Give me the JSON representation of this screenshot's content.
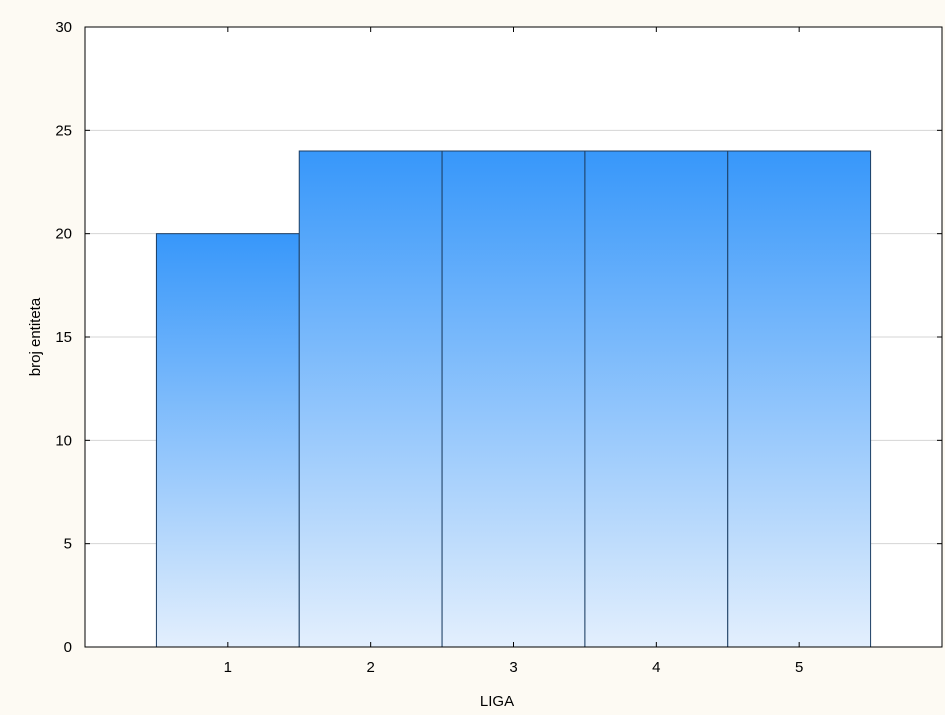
{
  "chart_data": {
    "type": "bar",
    "categories": [
      "1",
      "2",
      "3",
      "4",
      "5"
    ],
    "values": [
      20,
      24,
      24,
      24,
      24
    ],
    "title": "",
    "xlabel": "LIGA",
    "ylabel": "broj entiteta",
    "ylim": [
      0,
      30
    ],
    "yticks": [
      "0",
      "5",
      "10",
      "15",
      "20",
      "25",
      "30"
    ],
    "grid": true,
    "legend": "none",
    "colors": {
      "bar_top": "#3797fa",
      "bar_bottom": "#e3effd",
      "bar_edge": "#1c3e63",
      "grid": "#d4d4d4",
      "frame": "#000000",
      "plot_bg": "#ffffff",
      "page_bg": "#fdfaf3"
    }
  }
}
